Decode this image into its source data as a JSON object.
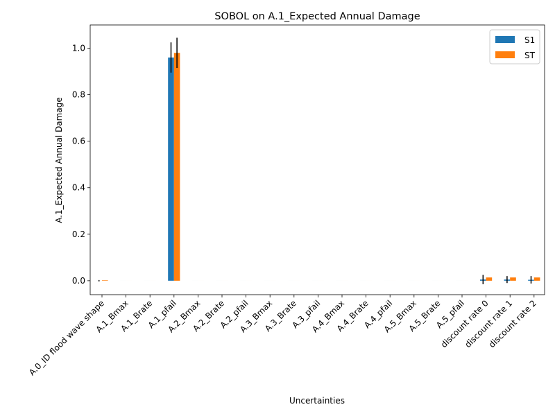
{
  "chart_data": {
    "type": "bar",
    "title": "SOBOL on A.1_Expected Annual Damage",
    "xlabel": "Uncertainties",
    "ylabel": "A.1_Expected Annual Damage",
    "ylim": [
      -0.06,
      1.1
    ],
    "yticks": [
      0.0,
      0.2,
      0.4,
      0.6,
      0.8,
      1.0
    ],
    "ytick_labels": [
      "0.0",
      "0.2",
      "0.4",
      "0.6",
      "0.8",
      "1.0"
    ],
    "legend_position": "top-right",
    "categories": [
      "A.0_ID flood wave shape",
      "A.1_Bmax",
      "A.1_Brate",
      "A.1_pfail",
      "A.2_Bmax",
      "A.2_Brate",
      "A.2_pfail",
      "A.3_Bmax",
      "A.3_Brate",
      "A.3_pfail",
      "A.4_Bmax",
      "A.4_Brate",
      "A.4_pfail",
      "A.5_Bmax",
      "A.5_Brate",
      "A.5_pfail",
      "discount rate 0",
      "discount rate 1",
      "discount rate 2"
    ],
    "series": [
      {
        "name": "S1",
        "color": "#1f77b4",
        "values": [
          0.0,
          0.0,
          0.0,
          0.96,
          0.0,
          0.0,
          0.0,
          0.0,
          0.0,
          0.0,
          0.0,
          0.0,
          0.0,
          0.0,
          0.0,
          0.0,
          0.005,
          0.005,
          0.004
        ],
        "conf": [
          0.003,
          0,
          0,
          0.065,
          0,
          0,
          0,
          0,
          0,
          0,
          0,
          0,
          0,
          0,
          0,
          0,
          0.02,
          0.015,
          0.016
        ]
      },
      {
        "name": "ST",
        "color": "#ff7f0e",
        "values": [
          0.002,
          0.0,
          0.0,
          0.98,
          0.0,
          0.0,
          0.0,
          0.0,
          0.0,
          0.0,
          0.0,
          0.0,
          0.0,
          0.0,
          0.0,
          0.0,
          0.014,
          0.014,
          0.014
        ],
        "conf": [
          0,
          0,
          0,
          0.065,
          0,
          0,
          0,
          0,
          0,
          0,
          0,
          0,
          0,
          0,
          0,
          0,
          0,
          0,
          0
        ]
      }
    ]
  }
}
